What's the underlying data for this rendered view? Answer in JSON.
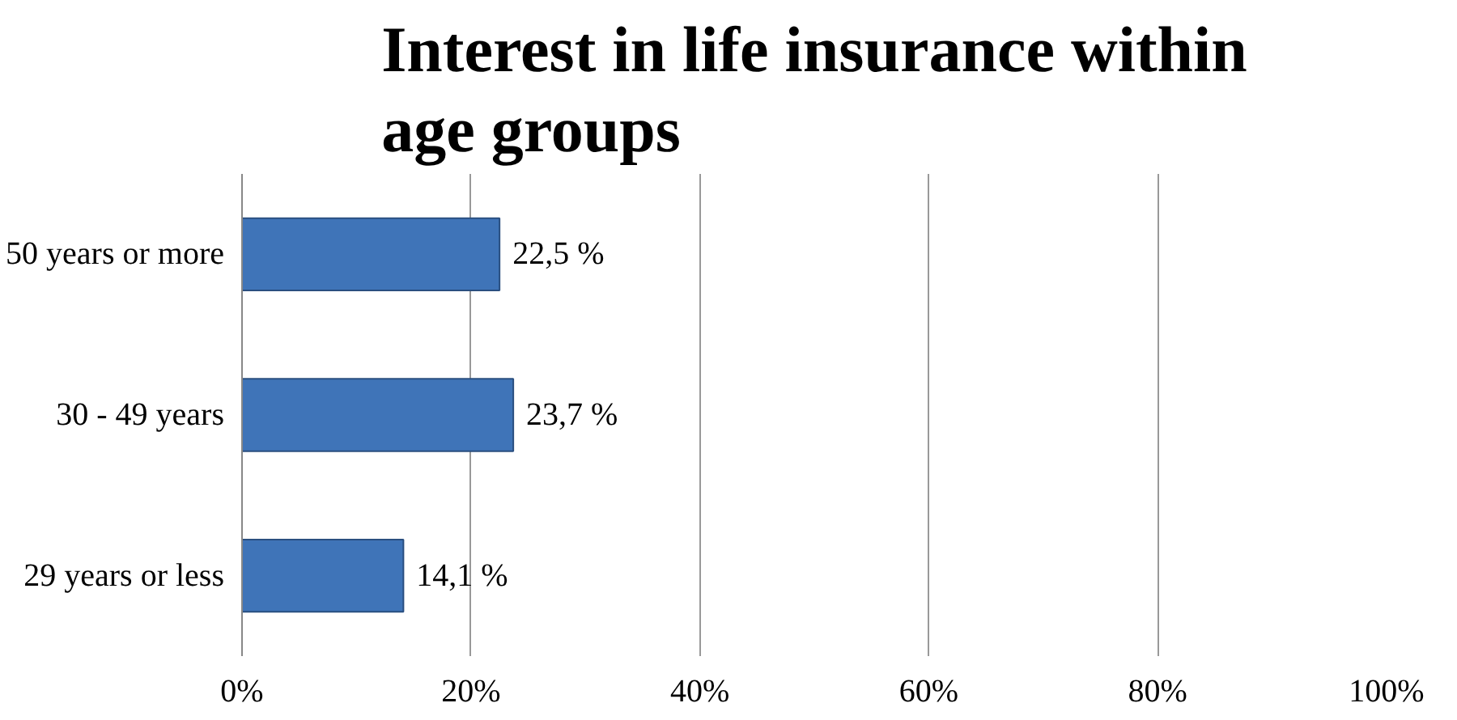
{
  "chart_data": {
    "type": "bar",
    "orientation": "horizontal",
    "title": "Interest in life insurance within age groups",
    "categories": [
      "50 years or more",
      "30 - 49 years",
      "29 years or less"
    ],
    "values": [
      22.5,
      23.7,
      14.1
    ],
    "value_labels": [
      "22,5 %",
      "23,7 %",
      "14,1 %"
    ],
    "color": "#3f74b8",
    "xlim": [
      0,
      100
    ],
    "xticks": [
      {
        "value": 0,
        "label": "0%"
      },
      {
        "value": 20,
        "label": "20%"
      },
      {
        "value": 40,
        "label": "40%"
      },
      {
        "value": 60,
        "label": "60%"
      },
      {
        "value": 80,
        "label": "80%"
      },
      {
        "value": 100,
        "label": "100%"
      }
    ],
    "grid": "x"
  }
}
